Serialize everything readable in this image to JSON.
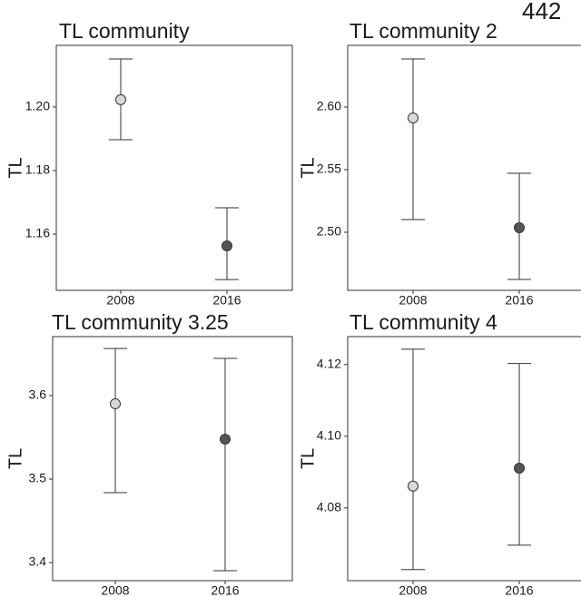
{
  "page_label": "442",
  "chart_data": [
    {
      "type": "errorbar",
      "title": "TL community",
      "y_label": "TL",
      "categories": [
        "2008",
        "2016"
      ],
      "values": [
        1.2023,
        1.1563
      ],
      "lower": [
        1.1897,
        1.1457
      ],
      "upper": [
        1.2151,
        1.1683
      ],
      "colors": [
        "#d9d9d9",
        "#555555"
      ],
      "ylim": [
        1.1423,
        1.2194
      ],
      "yticks": [
        1.16,
        1.18,
        {
          "value": 1.2,
          "label": "1.20"
        }
      ]
    },
    {
      "type": "errorbar",
      "title": "TL community 2",
      "y_label": "TL",
      "categories": [
        "2008",
        "2016"
      ],
      "values": [
        2.5913,
        2.5036
      ],
      "lower": [
        2.5101,
        2.4623
      ],
      "upper": [
        2.6384,
        2.5471
      ],
      "colors": [
        "#d9d9d9",
        "#555555"
      ],
      "ylim": [
        2.4536,
        2.6493
      ],
      "yticks": [
        {
          "value": 2.5,
          "label": "2.50"
        },
        2.55,
        {
          "value": 2.6,
          "label": "2.60"
        }
      ]
    },
    {
      "type": "errorbar",
      "title": "TL community 3.25",
      "y_label": "TL",
      "categories": [
        "2008",
        "2016"
      ],
      "values": [
        3.5902,
        3.5478
      ],
      "lower": [
        3.4837,
        3.3902
      ],
      "upper": [
        3.6565,
        3.6446
      ],
      "colors": [
        "#d9d9d9",
        "#555555"
      ],
      "ylim": [
        3.3783,
        3.6707
      ],
      "yticks": [
        3.4,
        3.5,
        3.6
      ]
    },
    {
      "type": "errorbar",
      "title": "TL community 4",
      "y_label": "TL",
      "categories": [
        "2008",
        "2016"
      ],
      "values": [
        4.0861,
        4.0911
      ],
      "lower": [
        4.0628,
        4.0696
      ],
      "upper": [
        4.1243,
        4.1203
      ],
      "colors": [
        "#d9d9d9",
        "#555555"
      ],
      "ylim": [
        4.0597,
        4.1278
      ],
      "yticks": [
        4.08,
        {
          "value": 4.1,
          "label": "4.10"
        },
        4.12
      ]
    }
  ]
}
